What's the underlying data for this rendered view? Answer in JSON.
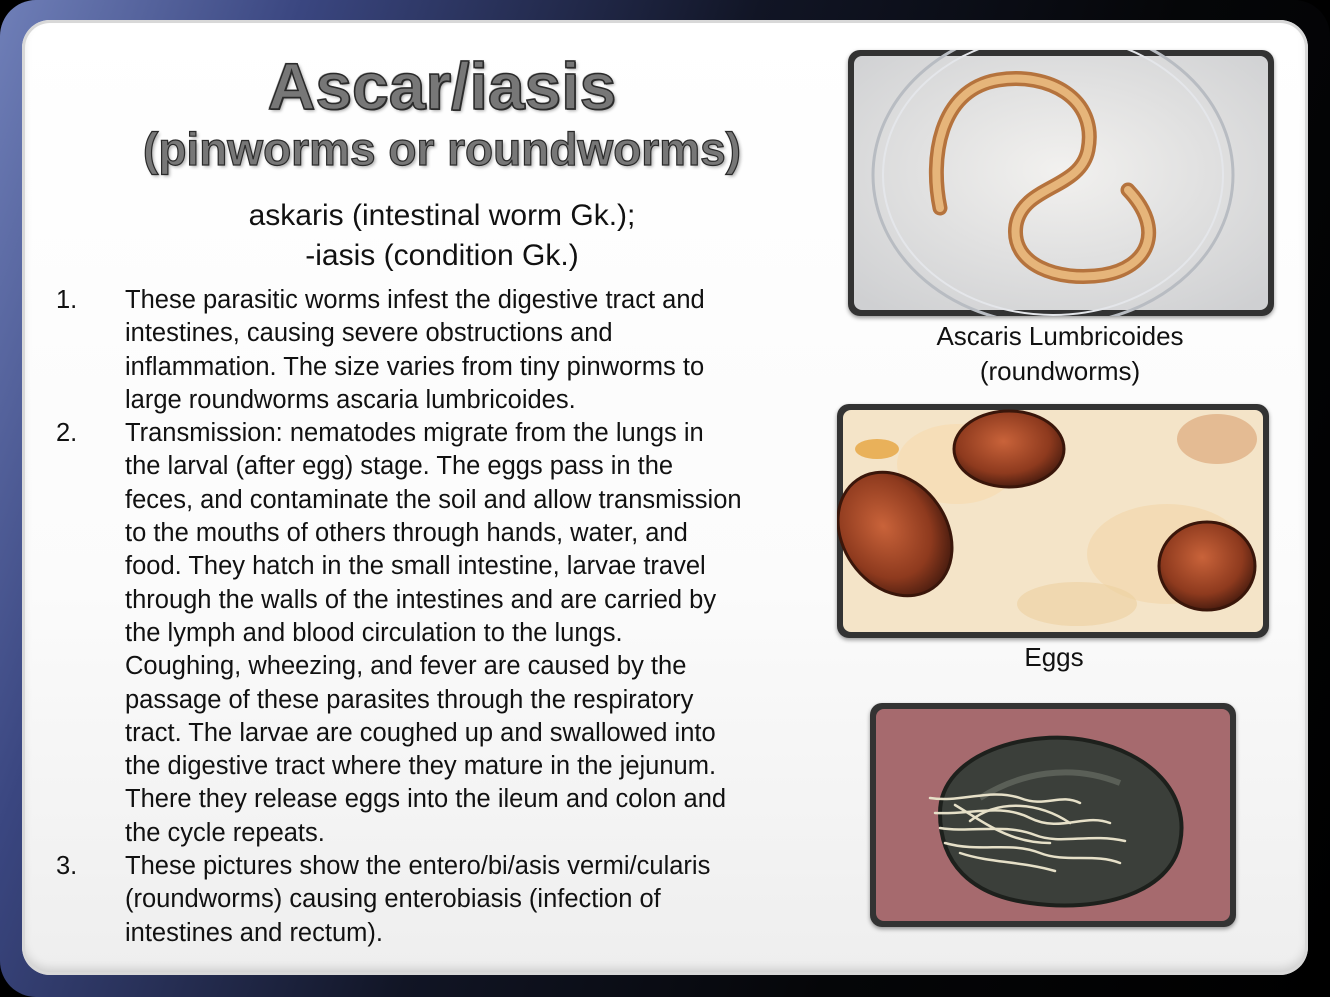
{
  "title": "Ascar/iasis",
  "subtitle": "(pinworms or roundworms)",
  "etymology": [
    "askaris (intestinal worm Gk.);",
    "-iasis (condition Gk.)"
  ],
  "items": [
    {
      "number": "1.",
      "lines": [
        "These parasitic worms infest the digestive tract and",
        "intestines, causing severe obstructions and",
        "inflammation. The size varies from tiny pinworms to",
        "large roundworms ascaria lumbricoides."
      ]
    },
    {
      "number": "2.",
      "lines": [
        "Transmission: nematodes migrate from the lungs in",
        "the larval (after egg) stage. The eggs pass in the",
        "feces, and contaminate the soil and allow transmission",
        "to the mouths of others through hands, water, and",
        "food. They hatch in the small intestine, larvae travel",
        "through the walls of the intestines and are carried by",
        "the lymph and blood circulation to the lungs.",
        "Coughing, wheezing, and fever are caused by the",
        "passage of these parasites through the respiratory",
        "tract. The larvae are coughed up and swallowed into",
        "the digestive tract where they mature in the jejunum.",
        "There they release eggs into the ileum and colon and",
        "the cycle repeats."
      ]
    },
    {
      "number": "3.",
      "lines": [
        "These pictures show the entero/bi/asis vermi/cularis",
        "(roundworms) causing enterobiasis (infection of",
        "intestines and rectum)."
      ]
    }
  ],
  "captions": {
    "worm_line1": "Ascaris Lumbricoides",
    "worm_line2": "(roundworms)",
    "eggs": "Eggs"
  },
  "images": [
    {
      "name": "roundworm-in-petri-dish-photo"
    },
    {
      "name": "ascaris-eggs-micrograph-photo"
    },
    {
      "name": "pinworm-mass-specimen-photo"
    }
  ],
  "colors": {
    "text": "#111111",
    "title_fill": "#777777",
    "frame_accent": "#6f7fb8"
  }
}
